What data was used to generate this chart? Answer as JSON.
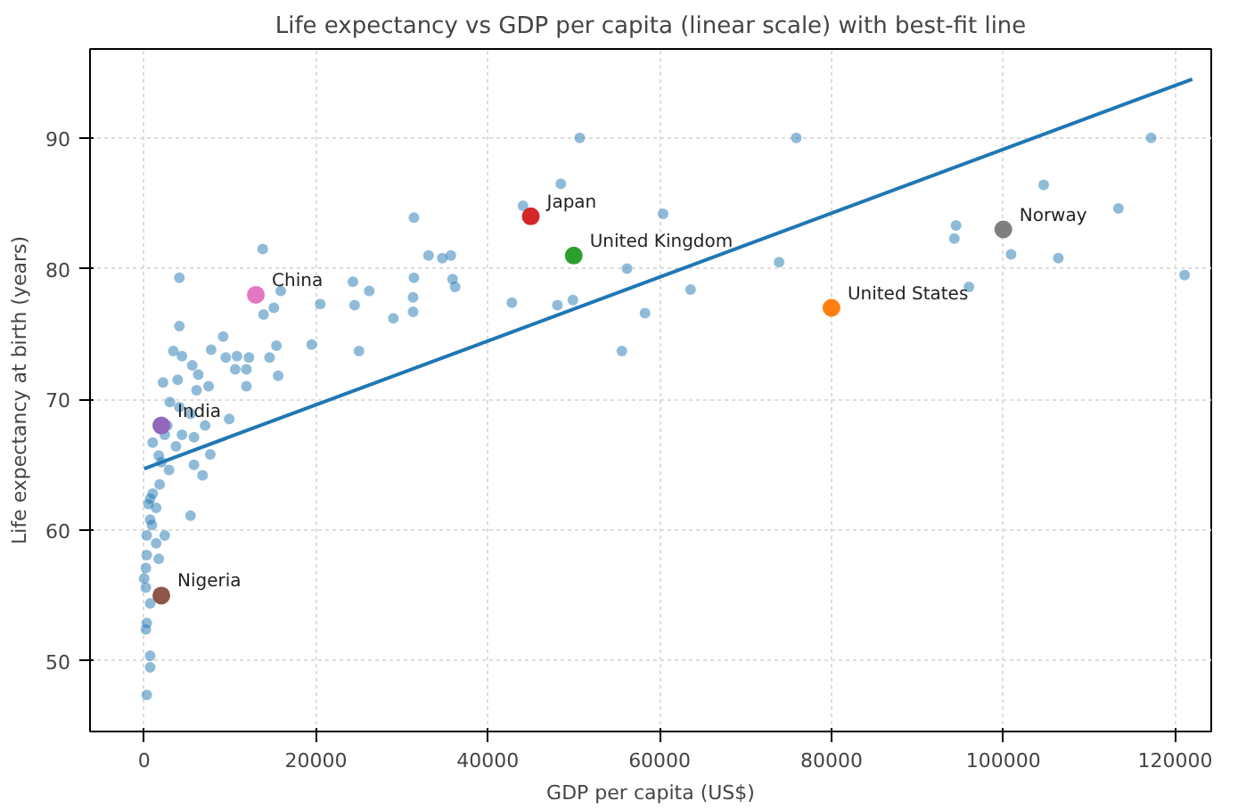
{
  "chart_data": {
    "type": "scatter",
    "title": "Life expectancy vs GDP per capita (linear scale) with best-fit line",
    "xlabel": "GDP per capita (US$)",
    "ylabel": "Life expectancy at birth (years)",
    "xlim": [
      -6300,
      124200
    ],
    "ylim": [
      44.6,
      96.8
    ],
    "xticks": [
      0,
      20000,
      40000,
      60000,
      80000,
      100000,
      120000
    ],
    "yticks": [
      50,
      60,
      70,
      80,
      90
    ],
    "grid": true,
    "marker": "circle",
    "series": [
      {
        "color": "#1f77b4",
        "x": [
          13800,
          4100,
          15900,
          13900,
          15100,
          20500,
          4100,
          9200,
          3400,
          4400,
          5600,
          7800,
          9500,
          10800,
          12200,
          11900,
          10600,
          15400,
          14600,
          15600,
          19500,
          11900,
          6300,
          6100,
          7500,
          2200,
          3900,
          3000,
          4100,
          5400,
          7100,
          9900,
          1000,
          1700,
          3700,
          5800,
          7700,
          5800,
          6800,
          2900,
          1800,
          700,
          1400,
          700,
          5400,
          300,
          1400,
          300,
          1700,
          200,
          200,
          700,
          300,
          200,
          700,
          700,
          300,
          0,
          900,
          2400,
          500,
          1000,
          2000,
          2400,
          2700,
          4400,
          50700,
          48500,
          44100,
          31400,
          33100,
          34700,
          35700,
          60400,
          24300,
          26200,
          31400,
          35900,
          36200,
          24500,
          31300,
          31300,
          29000,
          25000,
          42800,
          48100,
          49900,
          56200,
          58300,
          63600,
          55600,
          73900,
          75900,
          117200,
          104700,
          113400,
          94500,
          94300,
          100900,
          106400,
          121100,
          96000
        ],
        "values": [
          81.5,
          79.3,
          78.3,
          76.5,
          77,
          77.3,
          75.6,
          74.8,
          73.7,
          73.3,
          72.6,
          73.8,
          73.2,
          73.3,
          73.2,
          72.3,
          72.3,
          74.1,
          73.2,
          71.8,
          74.2,
          71,
          71.9,
          70.7,
          71,
          71.3,
          71.5,
          69.8,
          69.4,
          68.9,
          68,
          68.5,
          66.7,
          65.7,
          66.4,
          67.1,
          65.8,
          65,
          64.2,
          64.6,
          63.5,
          62.4,
          61.7,
          60.8,
          61.1,
          59.6,
          59,
          58.1,
          57.8,
          57.1,
          55.6,
          54.4,
          52.9,
          52.4,
          50.4,
          49.5,
          47.4,
          56.3,
          60.4,
          59.6,
          62,
          62.8,
          65.2,
          67.3,
          68,
          67.3,
          90,
          86.5,
          84.8,
          83.9,
          81,
          80.8,
          81,
          84.2,
          79,
          78.3,
          79.3,
          79.2,
          78.6,
          77.2,
          77.8,
          76.7,
          76.2,
          73.7,
          77.4,
          77.2,
          77.6,
          80,
          76.6,
          78.4,
          73.7,
          80.5,
          90,
          90,
          86.4,
          84.6,
          83.3,
          82.3,
          81.1,
          80.8,
          79.5,
          78.6
        ]
      },
      {
        "name": "Nigeria",
        "color": "#8c564b",
        "x": [
          2000
        ],
        "values": [
          55
        ]
      },
      {
        "name": "India",
        "color": "#9467bd",
        "x": [
          2000
        ],
        "values": [
          68
        ]
      },
      {
        "name": "China",
        "color": "#e377c2",
        "x": [
          13000
        ],
        "values": [
          78
        ]
      },
      {
        "name": "Japan",
        "color": "#d62728",
        "x": [
          45000
        ],
        "values": [
          84
        ]
      },
      {
        "name": "United Kingdom",
        "color": "#2ca02c",
        "x": [
          50000
        ],
        "values": [
          81
        ]
      },
      {
        "name": "United States",
        "color": "#ff7f0e",
        "x": [
          80000
        ],
        "values": [
          77
        ]
      },
      {
        "name": "Norway",
        "color": "#7f7f7f",
        "x": [
          100000
        ],
        "values": [
          83
        ]
      },
      {
        "type": "line",
        "marker": "none",
        "color": "#1f77b4",
        "x": [
          0,
          122000
        ],
        "values": [
          64.7,
          94.5
        ]
      }
    ]
  }
}
